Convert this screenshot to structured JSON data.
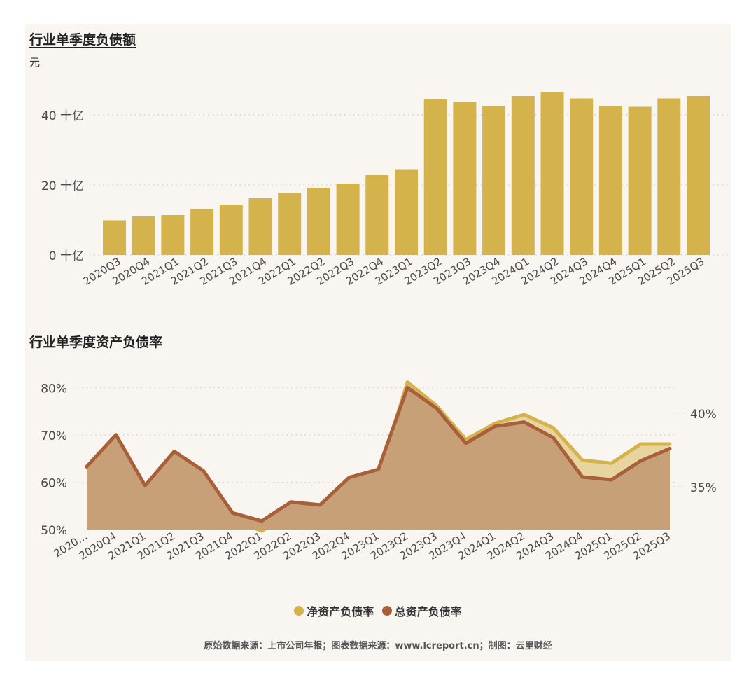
{
  "source_note": "原始数据来源：上市公司年报；图表数据来源：www.lcreport.cn；制图：云里财经",
  "legend": [
    {
      "label": "净资产负债率",
      "color": "#d4b24c"
    },
    {
      "label": "总资产负债率",
      "color": "#a8603a"
    }
  ],
  "chart_data": [
    {
      "type": "bar",
      "title": "行业单季度负债额",
      "unit_label": "元",
      "categories": [
        "2020Q3",
        "2020Q4",
        "2021Q1",
        "2021Q2",
        "2021Q3",
        "2021Q4",
        "2022Q1",
        "2022Q2",
        "2022Q3",
        "2022Q4",
        "2023Q1",
        "2023Q2",
        "2023Q3",
        "2023Q4",
        "2024Q1",
        "2024Q2",
        "2024Q3",
        "2024Q4",
        "2025Q1",
        "2025Q2",
        "2025Q3"
      ],
      "values": [
        9.9,
        11.0,
        11.4,
        13.1,
        14.4,
        16.2,
        17.7,
        19.2,
        20.4,
        22.8,
        24.3,
        44.6,
        43.8,
        42.6,
        45.4,
        46.4,
        44.7,
        42.5,
        42.3,
        44.7,
        45.4
      ],
      "ylim": [
        0,
        48
      ],
      "yticks": [
        {
          "value": 0,
          "label": "0 十亿"
        },
        {
          "value": 20,
          "label": "20 十亿"
        },
        {
          "value": 40,
          "label": "40 十亿"
        }
      ],
      "bar_color": "#d4b24c",
      "grid": true
    },
    {
      "type": "area",
      "title": "行业单季度资产负债率",
      "categories": [
        "2020…",
        "2020Q4",
        "2021Q1",
        "2021Q2",
        "2021Q3",
        "2021Q4",
        "2022Q1",
        "2022Q2",
        "2022Q3",
        "2022Q4",
        "2023Q1",
        "2023Q2",
        "2023Q3",
        "2023Q4",
        "2024Q1",
        "2024Q2",
        "2024Q3",
        "2024Q4",
        "2025Q1",
        "2025Q2",
        "2025Q3"
      ],
      "series": [
        {
          "name": "净资产负债率",
          "axis": "right",
          "color": "#d4b24c",
          "fill": "#e8d49e",
          "values": [
            36.3,
            38.4,
            34.7,
            36.7,
            35.2,
            32.8,
            32.0,
            33.3,
            33.0,
            34.9,
            35.7,
            42.1,
            40.5,
            38.2,
            39.3,
            39.9,
            39.0,
            36.8,
            36.6,
            37.9,
            37.9
          ]
        },
        {
          "name": "总资产负债率",
          "axis": "left",
          "color": "#a8603a",
          "fill": "#c8a078",
          "values": [
            63.3,
            70.0,
            59.3,
            66.5,
            62.4,
            53.5,
            51.8,
            55.8,
            55.2,
            61.0,
            62.7,
            80.0,
            75.6,
            68.2,
            71.8,
            72.7,
            69.4,
            61.1,
            60.5,
            64.5,
            67.1
          ]
        }
      ],
      "left_axis": {
        "ylim": [
          50,
          83
        ],
        "ticks": [
          50,
          60,
          70,
          80
        ],
        "tick_labels": [
          "50%",
          "60%",
          "70%",
          "80%"
        ]
      },
      "right_axis": {
        "ylim": [
          32.1,
          42.7
        ],
        "ticks": [
          35,
          40
        ],
        "tick_labels": [
          "35%",
          "40%"
        ]
      },
      "grid": true
    }
  ]
}
